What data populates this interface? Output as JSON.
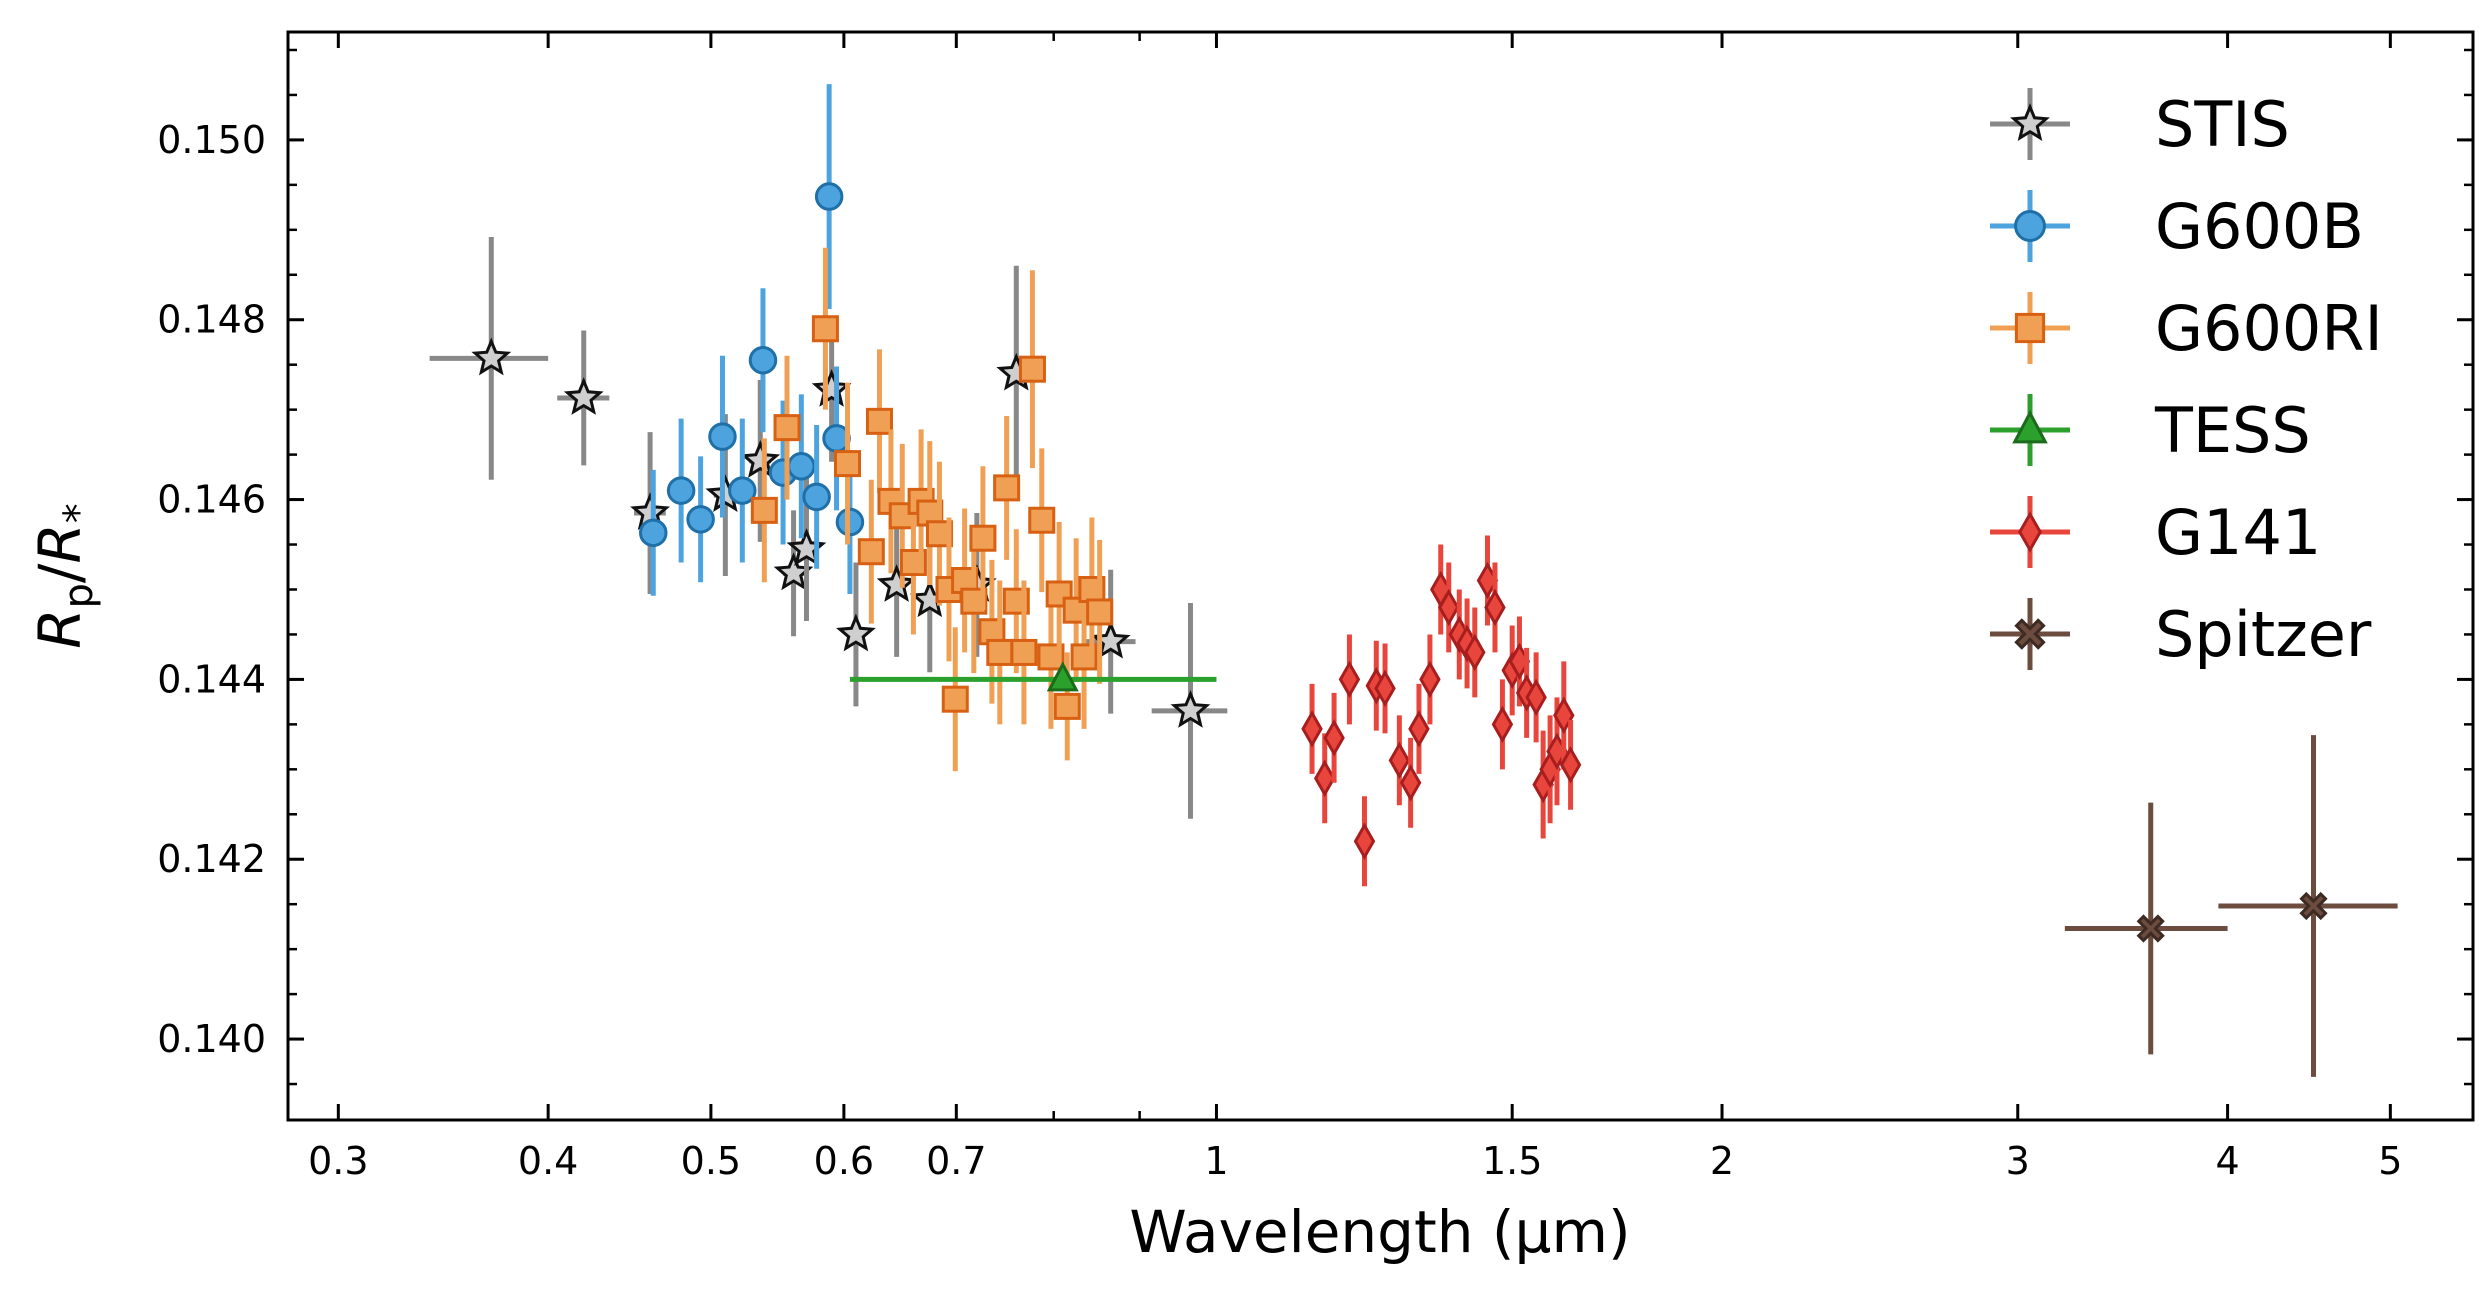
{
  "chart_data": {
    "type": "scatter",
    "title": "",
    "xlabel": "Wavelength (μm)",
    "ylabel_main": "R",
    "ylabel_sub1": "p",
    "ylabel_slash": "/",
    "ylabel_sub2": "*",
    "xscale": "log",
    "xlim": [
      0.28,
      5.6
    ],
    "ylim": [
      0.1391,
      0.1512
    ],
    "x_ticks": [
      {
        "value": 0.3,
        "label": "0.3"
      },
      {
        "value": 0.4,
        "label": "0.4"
      },
      {
        "value": 0.5,
        "label": "0.5"
      },
      {
        "value": 0.6,
        "label": "0.6"
      },
      {
        "value": 0.7,
        "label": "0.7"
      },
      {
        "value": 1.0,
        "label": "1"
      },
      {
        "value": 1.5,
        "label": "1.5"
      },
      {
        "value": 2.0,
        "label": "2"
      },
      {
        "value": 3.0,
        "label": "3"
      },
      {
        "value": 4.0,
        "label": "4"
      },
      {
        "value": 5.0,
        "label": "5"
      }
    ],
    "x_minor_ticks": [
      0.8,
      0.9
    ],
    "y_ticks": [
      {
        "value": 0.14,
        "label": "0.140"
      },
      {
        "value": 0.142,
        "label": "0.142"
      },
      {
        "value": 0.144,
        "label": "0.144"
      },
      {
        "value": 0.146,
        "label": "0.146"
      },
      {
        "value": 0.148,
        "label": "0.148"
      },
      {
        "value": 0.15,
        "label": "0.150"
      }
    ],
    "legend_position": "top-right",
    "series": [
      {
        "name": "STIS",
        "marker": "star",
        "color": "#888888",
        "face": "#cfcfcf",
        "edge": "#111111",
        "points": [
          {
            "x": 0.37,
            "y": 0.14757,
            "xerr": 0.03,
            "yerr": 0.00135
          },
          {
            "x": 0.42,
            "y": 0.14713,
            "xerr": 0.015,
            "yerr": 0.00075
          },
          {
            "x": 0.46,
            "y": 0.14585,
            "xerr": 0.01,
            "yerr": 0.0009
          },
          {
            "x": 0.51,
            "y": 0.14605,
            "xerr": 0.008,
            "yerr": 0.0009
          },
          {
            "x": 0.535,
            "y": 0.14643,
            "xerr": 0.008,
            "yerr": 0.0009
          },
          {
            "x": 0.56,
            "y": 0.14518,
            "xerr": 0.008,
            "yerr": 0.0007
          },
          {
            "x": 0.57,
            "y": 0.14545,
            "xerr": 0.008,
            "yerr": 0.0008
          },
          {
            "x": 0.59,
            "y": 0.14722,
            "xerr": 0.006,
            "yerr": 0.0008
          },
          {
            "x": 0.61,
            "y": 0.1445,
            "xerr": 0.008,
            "yerr": 0.0008
          },
          {
            "x": 0.645,
            "y": 0.14505,
            "xerr": 0.008,
            "yerr": 0.0008
          },
          {
            "x": 0.675,
            "y": 0.14488,
            "xerr": 0.008,
            "yerr": 0.0008
          },
          {
            "x": 0.72,
            "y": 0.14505,
            "xerr": 0.008,
            "yerr": 0.0008
          },
          {
            "x": 0.76,
            "y": 0.1474,
            "xerr": 0.008,
            "yerr": 0.0012
          },
          {
            "x": 0.865,
            "y": 0.14442,
            "xerr": 0.03,
            "yerr": 0.0008
          },
          {
            "x": 0.965,
            "y": 0.14365,
            "xerr": 0.05,
            "yerr": 0.0012
          }
        ]
      },
      {
        "name": "G600B",
        "marker": "circle",
        "color": "#4da3de",
        "face": "#4da3de",
        "edge": "#1f6fa8",
        "points": [
          {
            "x": 0.462,
            "y": 0.14563,
            "yerr": 0.0007
          },
          {
            "x": 0.48,
            "y": 0.1461,
            "yerr": 0.0008
          },
          {
            "x": 0.493,
            "y": 0.14578,
            "yerr": 0.0007
          },
          {
            "x": 0.508,
            "y": 0.1467,
            "yerr": 0.0009
          },
          {
            "x": 0.522,
            "y": 0.1461,
            "yerr": 0.0008
          },
          {
            "x": 0.537,
            "y": 0.14755,
            "yerr": 0.0008
          },
          {
            "x": 0.552,
            "y": 0.1463,
            "yerr": 0.0008
          },
          {
            "x": 0.566,
            "y": 0.14637,
            "yerr": 0.0008
          },
          {
            "x": 0.578,
            "y": 0.14603,
            "yerr": 0.0008
          },
          {
            "x": 0.588,
            "y": 0.14937,
            "yerr": 0.00125
          },
          {
            "x": 0.594,
            "y": 0.14668,
            "yerr": 0.0008
          },
          {
            "x": 0.605,
            "y": 0.14575,
            "yerr": 0.0008
          }
        ]
      },
      {
        "name": "G600RI",
        "marker": "square",
        "color": "#f0a054",
        "face": "#f0a054",
        "edge": "#d86012",
        "points": [
          {
            "x": 0.538,
            "y": 0.14588,
            "yerr": 0.0008
          },
          {
            "x": 0.555,
            "y": 0.1468,
            "yerr": 0.0008
          },
          {
            "x": 0.585,
            "y": 0.1479,
            "yerr": 0.0009
          },
          {
            "x": 0.603,
            "y": 0.1464,
            "yerr": 0.0009
          },
          {
            "x": 0.623,
            "y": 0.14542,
            "yerr": 0.0008
          },
          {
            "x": 0.63,
            "y": 0.14687,
            "yerr": 0.0008
          },
          {
            "x": 0.64,
            "y": 0.14598,
            "yerr": 0.0008
          },
          {
            "x": 0.65,
            "y": 0.14582,
            "yerr": 0.0008
          },
          {
            "x": 0.66,
            "y": 0.1453,
            "yerr": 0.0008
          },
          {
            "x": 0.667,
            "y": 0.14598,
            "yerr": 0.0008
          },
          {
            "x": 0.675,
            "y": 0.14585,
            "yerr": 0.0008
          },
          {
            "x": 0.684,
            "y": 0.14562,
            "yerr": 0.0008
          },
          {
            "x": 0.693,
            "y": 0.145,
            "yerr": 0.0008
          },
          {
            "x": 0.699,
            "y": 0.14378,
            "yerr": 0.0008
          },
          {
            "x": 0.708,
            "y": 0.1451,
            "yerr": 0.0008
          },
          {
            "x": 0.717,
            "y": 0.14487,
            "yerr": 0.0008
          },
          {
            "x": 0.726,
            "y": 0.14557,
            "yerr": 0.0008
          },
          {
            "x": 0.735,
            "y": 0.14453,
            "yerr": 0.0008
          },
          {
            "x": 0.743,
            "y": 0.1443,
            "yerr": 0.0008
          },
          {
            "x": 0.75,
            "y": 0.14613,
            "yerr": 0.0008
          },
          {
            "x": 0.76,
            "y": 0.14487,
            "yerr": 0.0008
          },
          {
            "x": 0.768,
            "y": 0.1443,
            "yerr": 0.0008
          },
          {
            "x": 0.777,
            "y": 0.14745,
            "yerr": 0.0011
          },
          {
            "x": 0.787,
            "y": 0.14577,
            "yerr": 0.0008
          },
          {
            "x": 0.797,
            "y": 0.14425,
            "yerr": 0.0008
          },
          {
            "x": 0.806,
            "y": 0.14495,
            "yerr": 0.0008
          },
          {
            "x": 0.815,
            "y": 0.1437,
            "yerr": 0.0006
          },
          {
            "x": 0.825,
            "y": 0.14477,
            "yerr": 0.0008
          },
          {
            "x": 0.834,
            "y": 0.14425,
            "yerr": 0.0008
          },
          {
            "x": 0.843,
            "y": 0.145,
            "yerr": 0.0008
          },
          {
            "x": 0.852,
            "y": 0.14475,
            "yerr": 0.0008
          }
        ]
      },
      {
        "name": "TESS",
        "marker": "triangle",
        "color": "#2ca02c",
        "face": "#2ca02c",
        "edge": "#1a6b1a",
        "points": [
          {
            "x": 0.81,
            "y": 0.144,
            "xerr_low": 0.205,
            "xerr_high": 0.19,
            "yerr": 0.0001
          }
        ]
      },
      {
        "name": "G141",
        "marker": "diamond",
        "color": "#e8453c",
        "face": "#e8453c",
        "edge": "#a81e1e",
        "points": [
          {
            "x": 1.14,
            "y": 0.14345,
            "yerr": 0.0005
          },
          {
            "x": 1.16,
            "y": 0.1429,
            "yerr": 0.0005
          },
          {
            "x": 1.175,
            "y": 0.14335,
            "yerr": 0.0005
          },
          {
            "x": 1.2,
            "y": 0.144,
            "yerr": 0.0005
          },
          {
            "x": 1.225,
            "y": 0.1422,
            "yerr": 0.0005
          },
          {
            "x": 1.245,
            "y": 0.14393,
            "yerr": 0.0005
          },
          {
            "x": 1.26,
            "y": 0.1439,
            "yerr": 0.0005
          },
          {
            "x": 1.285,
            "y": 0.1431,
            "yerr": 0.0005
          },
          {
            "x": 1.305,
            "y": 0.14285,
            "yerr": 0.0005
          },
          {
            "x": 1.32,
            "y": 0.14345,
            "yerr": 0.0005
          },
          {
            "x": 1.34,
            "y": 0.144,
            "yerr": 0.0005
          },
          {
            "x": 1.36,
            "y": 0.145,
            "yerr": 0.0005
          },
          {
            "x": 1.375,
            "y": 0.1448,
            "yerr": 0.0005
          },
          {
            "x": 1.395,
            "y": 0.1445,
            "yerr": 0.0005
          },
          {
            "x": 1.41,
            "y": 0.1444,
            "yerr": 0.0005
          },
          {
            "x": 1.425,
            "y": 0.1443,
            "yerr": 0.0005
          },
          {
            "x": 1.45,
            "y": 0.1451,
            "yerr": 0.0005
          },
          {
            "x": 1.465,
            "y": 0.1448,
            "yerr": 0.0005
          },
          {
            "x": 1.48,
            "y": 0.1435,
            "yerr": 0.0005
          },
          {
            "x": 1.5,
            "y": 0.1441,
            "yerr": 0.0005
          },
          {
            "x": 1.515,
            "y": 0.1442,
            "yerr": 0.0005
          },
          {
            "x": 1.53,
            "y": 0.14385,
            "yerr": 0.0005
          },
          {
            "x": 1.55,
            "y": 0.1438,
            "yerr": 0.0005
          },
          {
            "x": 1.565,
            "y": 0.14283,
            "yerr": 0.0006
          },
          {
            "x": 1.58,
            "y": 0.143,
            "yerr": 0.0006
          },
          {
            "x": 1.595,
            "y": 0.1432,
            "yerr": 0.0006
          },
          {
            "x": 1.61,
            "y": 0.1436,
            "yerr": 0.0006
          },
          {
            "x": 1.625,
            "y": 0.14305,
            "yerr": 0.0005
          }
        ]
      },
      {
        "name": "Spitzer",
        "marker": "x-filled",
        "color": "#6b4c3f",
        "face": "#6b4c3f",
        "edge": "#3d2a22",
        "points": [
          {
            "x": 3.6,
            "y": 0.14123,
            "xerr": 0.4,
            "yerr": 0.0014
          },
          {
            "x": 4.5,
            "y": 0.14148,
            "xerr": 0.55,
            "yerr": 0.0019
          }
        ]
      }
    ]
  }
}
